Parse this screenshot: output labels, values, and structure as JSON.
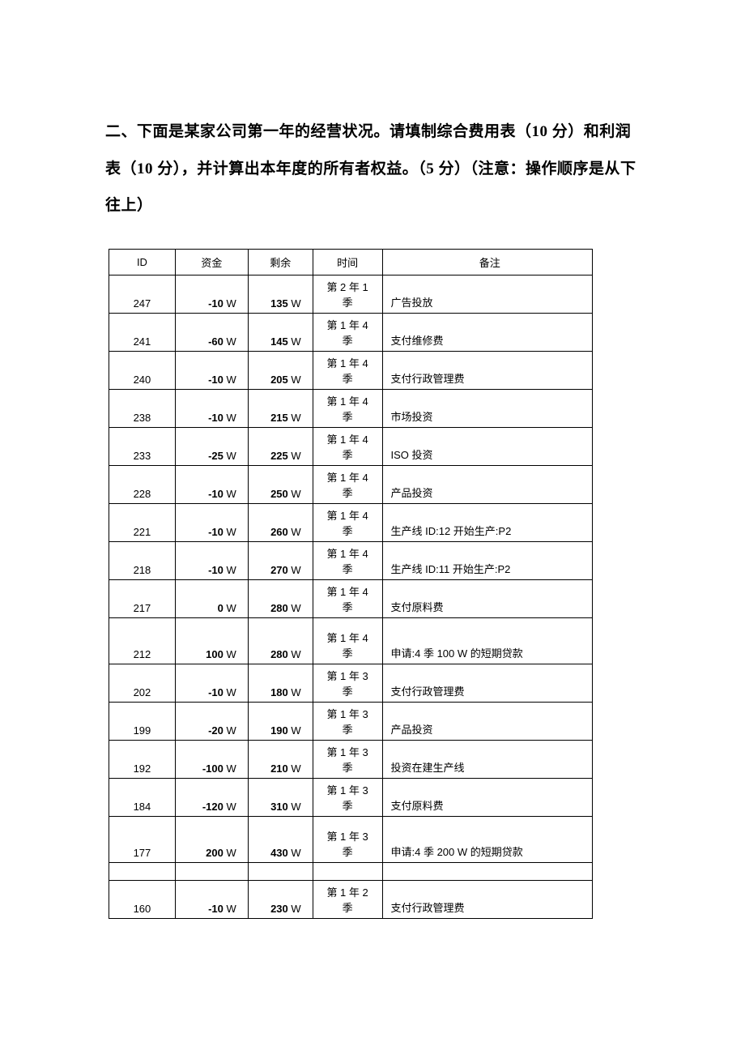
{
  "heading": "二、下面是某家公司第一年的经营状况。请填制综合费用表（10 分）和利润表（10 分），并计算出本年度的所有者权益。（5 分）（注意：操作顺序是从下往上）",
  "table": {
    "headers": {
      "id": "ID",
      "fund": "资金",
      "remain": "剩余",
      "time": "时间",
      "note": "备注"
    },
    "unit": " W",
    "rows": [
      {
        "id": "247",
        "fund": "-10",
        "remain": "135",
        "time_l1": "第 2 年 1",
        "time_l2": "季",
        "note": "广告投放",
        "tall": false
      },
      {
        "id": "241",
        "fund": "-60",
        "remain": "145",
        "time_l1": "第 1 年 4",
        "time_l2": "季",
        "note": "支付维修费",
        "tall": false
      },
      {
        "id": "240",
        "fund": "-10",
        "remain": "205",
        "time_l1": "第 1 年 4",
        "time_l2": "季",
        "note": "支付行政管理费",
        "tall": false
      },
      {
        "id": "238",
        "fund": "-10",
        "remain": "215",
        "time_l1": "第 1 年 4",
        "time_l2": "季",
        "note": "市场投资",
        "tall": false
      },
      {
        "id": "233",
        "fund": "-25",
        "remain": "225",
        "time_l1": "第 1 年 4",
        "time_l2": "季",
        "note": "ISO 投资",
        "tall": false
      },
      {
        "id": "228",
        "fund": "-10",
        "remain": "250",
        "time_l1": "第 1 年 4",
        "time_l2": "季",
        "note": "产品投资",
        "tall": false
      },
      {
        "id": "221",
        "fund": "-10",
        "remain": "260",
        "time_l1": "第 1 年 4",
        "time_l2": "季",
        "note": "生产线 ID:12 开始生产:P2",
        "tall": false
      },
      {
        "id": "218",
        "fund": "-10",
        "remain": "270",
        "time_l1": "第 1 年 4",
        "time_l2": "季",
        "note": "生产线 ID:11 开始生产:P2",
        "tall": false
      },
      {
        "id": "217",
        "fund": "0",
        "remain": "280",
        "time_l1": "第 1 年 4",
        "time_l2": "季",
        "note": "支付原料费",
        "tall": false
      },
      {
        "id": "212",
        "fund": "100",
        "remain": "280",
        "time_l1": "第 1 年 4",
        "time_l2": "季",
        "note": "申请:4 季 100 W 的短期贷款",
        "tall": true
      },
      {
        "id": "202",
        "fund": "-10",
        "remain": "180",
        "time_l1": "第 1 年 3",
        "time_l2": "季",
        "note": "支付行政管理费",
        "tall": false
      },
      {
        "id": "199",
        "fund": "-20",
        "remain": "190",
        "time_l1": "第 1 年 3",
        "time_l2": "季",
        "note": "产品投资",
        "tall": false
      },
      {
        "id": "192",
        "fund": "-100",
        "remain": "210",
        "time_l1": "第 1 年 3",
        "time_l2": "季",
        "note": "投资在建生产线",
        "tall": false
      },
      {
        "id": "184",
        "fund": "-120",
        "remain": "310",
        "time_l1": "第 1 年 3",
        "time_l2": "季",
        "note": "支付原料费",
        "tall": false
      },
      {
        "id": "177",
        "fund": "200",
        "remain": "430",
        "time_l1": "第 1 年 3",
        "time_l2": "季",
        "note": "申请:4 季 200 W 的短期贷款",
        "tall": true
      },
      {
        "blank": true
      },
      {
        "id": "160",
        "fund": "-10",
        "remain": "230",
        "time_l1": "第 1 年 2",
        "time_l2": "季",
        "note": "支付行政管理费",
        "tall": false
      }
    ]
  }
}
